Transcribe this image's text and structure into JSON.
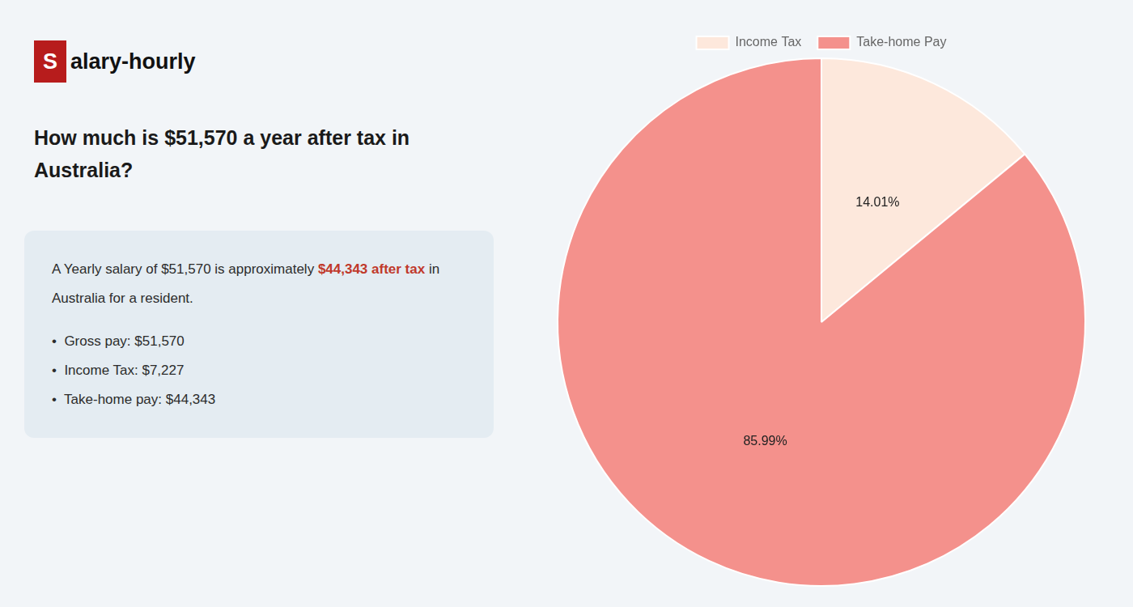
{
  "chart_data": {
    "type": "pie",
    "title": [
      "How much is $51,570 a year after tax in",
      "Australia?"
    ],
    "annotations": [
      [
        {
          "text": "S",
          "color": "#b71c1c"
        },
        {
          "text": "alary-hourly"
        }
      ],
      [
        {
          "text": "A Yearly salary of $51,570 is approximately "
        },
        {
          "text": "$44,343 after tax",
          "color": "#c0392b"
        },
        {
          "text": " in"
        }
      ],
      [
        {
          "text": "Australia for a resident."
        }
      ],
      [
        {
          "text": "•  Gross pay: $51,570"
        }
      ],
      [
        {
          "text": "•  Income Tax: $7,227"
        }
      ],
      [
        {
          "text": "•  Take-home pay: $44,343"
        }
      ]
    ],
    "categories": [
      "Income Tax",
      "Take-home Pay"
    ],
    "values": [
      14.01,
      85.99
    ],
    "value_labels": [
      "14.01%",
      "85.99%"
    ],
    "colors": [
      "#fde8dc",
      "#f4918c"
    ],
    "data_labels": true,
    "legend": "top"
  }
}
